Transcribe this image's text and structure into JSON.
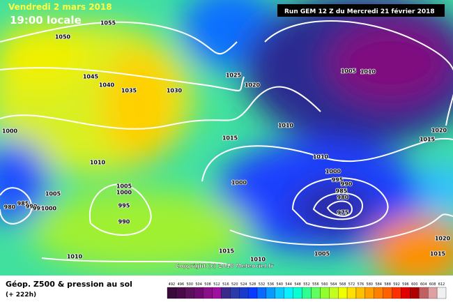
{
  "header": {
    "date": "Vendredi 2 mars 2018",
    "time": "19:00 locale",
    "run": "Run GEM 12 Z du Mercredi 21 février 2018"
  },
  "isobar_labels": [
    "1055",
    "1050",
    "1045",
    "1040",
    "1035",
    "1030",
    "1025",
    "1020",
    "1000",
    "1010",
    "1015",
    "1010",
    "1005",
    "1010",
    "1020",
    "1015",
    "1010",
    "1000",
    "995",
    "990",
    "985",
    "980",
    "975",
    "1000",
    "1005",
    "1000",
    "995",
    "990",
    "1005",
    "980",
    "985",
    "990",
    "995",
    "1000",
    "1010",
    "1015",
    "1005",
    "1020",
    "1015",
    "1010"
  ],
  "copyright": "Copyright (c) 2018 Meteociel.fr",
  "footer": {
    "title": "Géop. Z500 & pression au sol",
    "lead": "(+ 222h)"
  },
  "scale": {
    "labels": [
      "492",
      "496",
      "500",
      "504",
      "508",
      "512",
      "516",
      "520",
      "524",
      "528",
      "532",
      "536",
      "540",
      "544",
      "548",
      "552",
      "556",
      "560",
      "564",
      "568",
      "572",
      "576",
      "580",
      "584",
      "588",
      "592",
      "596",
      "600",
      "604",
      "608",
      "612"
    ],
    "colors": [
      "#3a0a3a",
      "#4a0a4a",
      "#5a105a",
      "#700a70",
      "#8a108a",
      "#a010a0",
      "#3a2a8a",
      "#2a3aaa",
      "#1a3acc",
      "#0a3aff",
      "#0a6aff",
      "#0a9aff",
      "#0acaff",
      "#0af0ff",
      "#0affd0",
      "#30ff90",
      "#60ff60",
      "#90ff30",
      "#c0ff20",
      "#f0ff00",
      "#ffe000",
      "#ffc000",
      "#ffa000",
      "#ff8000",
      "#ff6000",
      "#ff3000",
      "#e00000",
      "#b00000",
      "#c06060",
      "#e0a0a0",
      "#f0f0f0"
    ]
  }
}
